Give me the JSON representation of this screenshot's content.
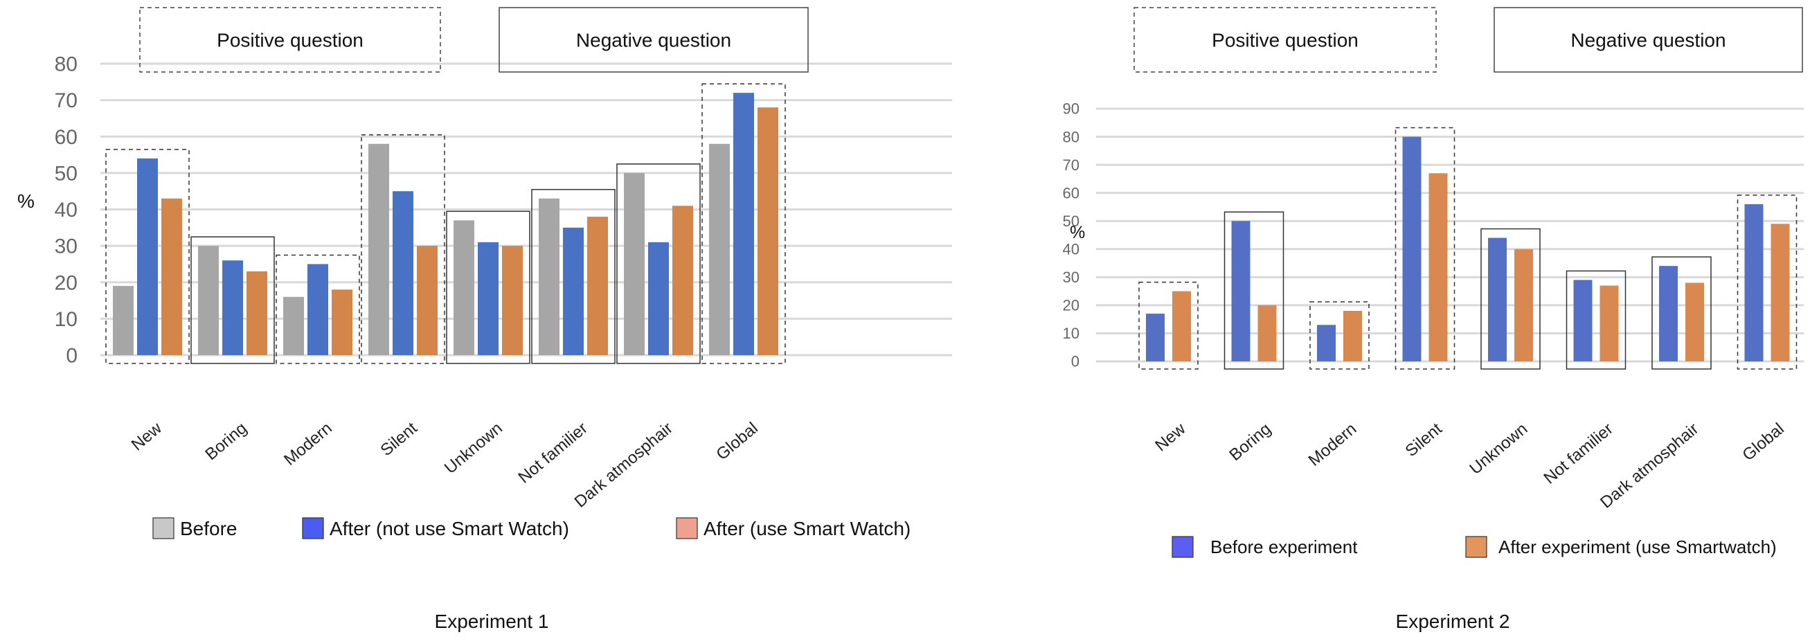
{
  "chart_data": [
    {
      "type": "bar",
      "title": "Experiment 1",
      "ylabel": "%",
      "ylim": [
        0,
        80
      ],
      "yticks": [
        0,
        10,
        20,
        30,
        40,
        50,
        60,
        70,
        80
      ],
      "categories": [
        "New",
        "Boring",
        "Modern",
        "Silent",
        "Unknown",
        "Not familier",
        "Dark atmosphair",
        "Global"
      ],
      "series": [
        {
          "name": "Before",
          "color": "#a6a6a6",
          "legend_color": "#c8c8c8",
          "values": [
            19,
            30,
            16,
            58,
            37,
            43,
            50,
            58
          ]
        },
        {
          "name": "After (not use Smart Watch)",
          "color": "#4a72c4",
          "legend_color": "#4b5cf0",
          "values": [
            54,
            26,
            25,
            45,
            31,
            35,
            31,
            72
          ]
        },
        {
          "name": "After (use Smart Watch)",
          "color": "#d4864a",
          "legend_color": "#f0a08e",
          "values": [
            43,
            23,
            18,
            30,
            30,
            38,
            41,
            68
          ]
        }
      ],
      "group_headers": [
        "Positive question",
        "Negative question"
      ],
      "positive_categories": [
        "New",
        "Modern",
        "Silent",
        "Global"
      ],
      "grid": true,
      "legend_position": "bottom"
    },
    {
      "type": "bar",
      "title": "Experiment 2",
      "ylabel": "%",
      "ylim": [
        0,
        90
      ],
      "yticks": [
        0,
        10,
        20,
        30,
        40,
        50,
        60,
        70,
        80,
        90
      ],
      "categories": [
        "New",
        "Boring",
        "Modern",
        "Silent",
        "Unknown",
        "Not familier",
        "Dark atmosphair",
        "Global"
      ],
      "series": [
        {
          "name": "Before experiment",
          "color": "#5470c6",
          "legend_color": "#5b5ef0",
          "values": [
            17,
            50,
            13,
            80,
            44,
            29,
            34,
            56
          ]
        },
        {
          "name": "After experiment (use Smartwatch)",
          "color": "#d9884f",
          "legend_color": "#e2955c",
          "values": [
            25,
            20,
            18,
            67,
            40,
            27,
            28,
            49
          ]
        }
      ],
      "group_headers": [
        "Positive question",
        "Negative question"
      ],
      "positive_categories": [
        "New",
        "Modern",
        "Silent",
        "Global"
      ],
      "grid": true,
      "legend_position": "bottom"
    }
  ]
}
